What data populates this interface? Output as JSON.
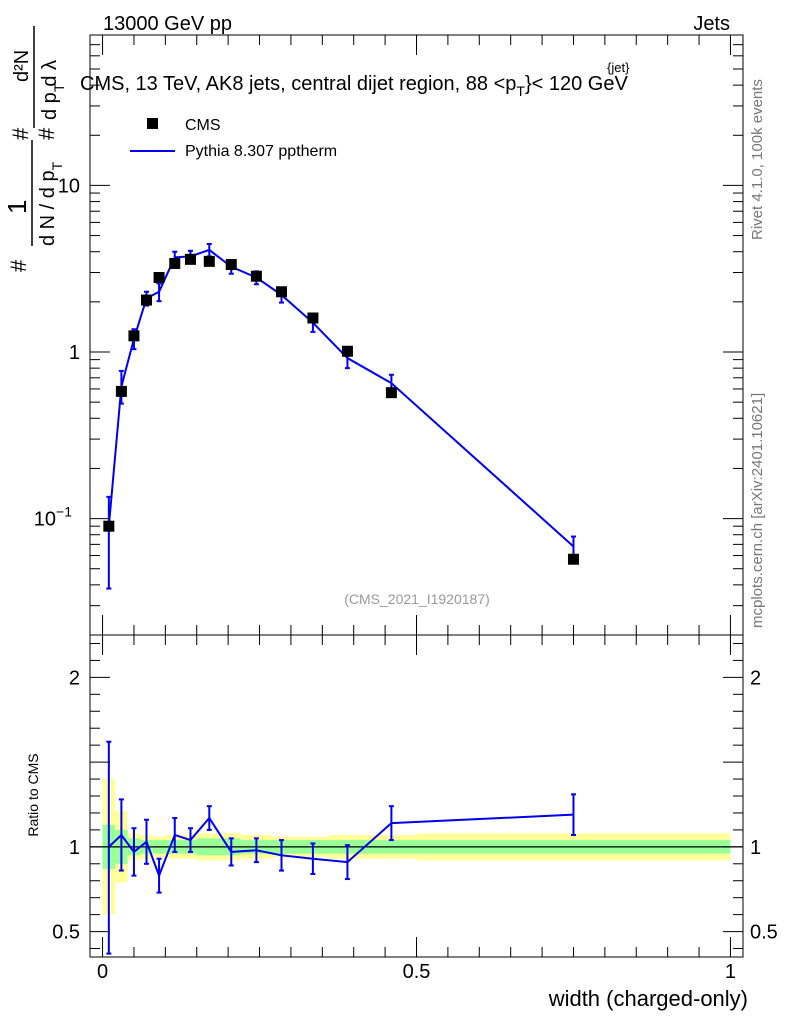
{
  "header": {
    "left_label": "13000 GeV pp",
    "right_label": "Jets"
  },
  "side_labels": {
    "rivet": "Rivet 4.1.0,  100k events",
    "mcplots": "mcplots.cern.ch [arXiv:2401.10621]"
  },
  "analysis_tag": "(CMS_2021_I1920187)",
  "chart_data": [
    {
      "type": "scatter",
      "title": "CMS, 13 TeV, AK8 jets, central dijet region, 88 <p_T^{jet}< 120 GeV",
      "title_parts": {
        "main": "CMS, 13 TeV, AK8 jets, central dijet region, 88 <p",
        "sub": "T",
        "sup": "{jet}",
        "tail": "}< 120 GeV"
      },
      "ylabel": "1/(dN/dp_T) d²N/(dp_T dλ)",
      "ylabel_parts": {
        "hash1": "#",
        "one": "1",
        "frac_bottom": "d N / d p",
        "sub_t": "T",
        "hash2": "#",
        "d2n": "d²N",
        "hash3": "#",
        "dp_dl": "d p  d λ",
        "sub_t2": "T"
      },
      "xlabel": "width (charged-only)",
      "yscale": "log",
      "ylim": [
        0.02,
        80
      ],
      "xlim": [
        -0.02,
        1.02
      ],
      "y_tick_labels": [
        {
          "value": 0.1,
          "base": "10",
          "exp": "−1"
        },
        {
          "value": 1,
          "label": "1"
        },
        {
          "value": 10,
          "label": "10"
        }
      ],
      "legend": {
        "position": "top-left",
        "entries": [
          "CMS",
          "Pythia 8.307 pptherm"
        ]
      },
      "series": [
        {
          "name": "CMS",
          "style": "markers",
          "color": "#000000",
          "x": [
            0.01,
            0.03,
            0.05,
            0.07,
            0.09,
            0.115,
            0.14,
            0.17,
            0.205,
            0.245,
            0.285,
            0.335,
            0.39,
            0.46,
            0.75
          ],
          "y": [
            0.09,
            0.58,
            1.25,
            2.05,
            2.8,
            3.4,
            3.6,
            3.5,
            3.35,
            2.85,
            2.3,
            1.6,
            1.01,
            0.57,
            0.057
          ]
        },
        {
          "name": "Pythia 8.307 pptherm",
          "style": "line",
          "color": "#0000ee",
          "x": [
            0.01,
            0.03,
            0.05,
            0.07,
            0.09,
            0.115,
            0.14,
            0.17,
            0.205,
            0.245,
            0.285,
            0.335,
            0.39,
            0.46,
            0.75
          ],
          "y": [
            0.09,
            0.62,
            1.2,
            2.1,
            2.3,
            3.7,
            3.75,
            4.1,
            3.25,
            2.8,
            2.2,
            1.5,
            0.92,
            0.65,
            0.068
          ],
          "err_low": [
            0.052,
            0.13,
            0.16,
            0.2,
            0.28,
            0.3,
            0.3,
            0.35,
            0.3,
            0.25,
            0.22,
            0.18,
            0.12,
            0.08,
            0.01
          ],
          "err_high": [
            0.045,
            0.15,
            0.17,
            0.2,
            0.28,
            0.3,
            0.3,
            0.35,
            0.3,
            0.25,
            0.22,
            0.18,
            0.12,
            0.08,
            0.01
          ]
        }
      ]
    },
    {
      "type": "line",
      "ylabel": "Ratio to CMS",
      "xlabel": "width (charged-only)",
      "ylim": [
        0.35,
        2.25
      ],
      "xlim": [
        -0.02,
        1.02
      ],
      "y_tick_labels": [
        {
          "value": 0.5,
          "label": "0.5"
        },
        {
          "value": 1,
          "label": "1"
        },
        {
          "value": 2,
          "label": "2"
        }
      ],
      "x_tick_labels": [
        {
          "value": 0,
          "label": "0"
        },
        {
          "value": 0.5,
          "label": "0.5"
        },
        {
          "value": 1,
          "label": "1"
        }
      ],
      "reference_line": 1,
      "uncertainty_bands": {
        "bin_edges": [
          0.0,
          0.02,
          0.04,
          0.06,
          0.08,
          0.1,
          0.13,
          0.15,
          0.19,
          0.22,
          0.27,
          0.3,
          0.36,
          0.42,
          0.5,
          1.0
        ],
        "yellow_half_width": [
          0.4,
          0.21,
          0.08,
          0.07,
          0.06,
          0.07,
          0.07,
          0.08,
          0.08,
          0.07,
          0.06,
          0.06,
          0.07,
          0.07,
          0.08
        ],
        "green_half_width": [
          0.13,
          0.1,
          0.05,
          0.04,
          0.04,
          0.04,
          0.04,
          0.05,
          0.05,
          0.04,
          0.04,
          0.04,
          0.04,
          0.04,
          0.04
        ],
        "yellow_color": "#ffff99",
        "green_color": "#99ff99"
      },
      "series": [
        {
          "name": "Pythia 8.307 pptherm / CMS",
          "color": "#0000ee",
          "x": [
            0.01,
            0.03,
            0.05,
            0.07,
            0.09,
            0.115,
            0.14,
            0.17,
            0.205,
            0.245,
            0.285,
            0.335,
            0.39,
            0.46,
            0.75
          ],
          "y": [
            1.0,
            1.07,
            0.97,
            1.03,
            0.83,
            1.07,
            1.04,
            1.17,
            0.97,
            0.98,
            0.95,
            0.93,
            0.91,
            1.14,
            1.19
          ],
          "err_low": [
            0.63,
            0.21,
            0.14,
            0.13,
            0.1,
            0.1,
            0.07,
            0.07,
            0.08,
            0.07,
            0.09,
            0.09,
            0.1,
            0.1,
            0.12
          ],
          "err_high": [
            0.62,
            0.21,
            0.14,
            0.13,
            0.1,
            0.1,
            0.07,
            0.07,
            0.08,
            0.07,
            0.09,
            0.09,
            0.1,
            0.1,
            0.12
          ]
        }
      ]
    }
  ]
}
